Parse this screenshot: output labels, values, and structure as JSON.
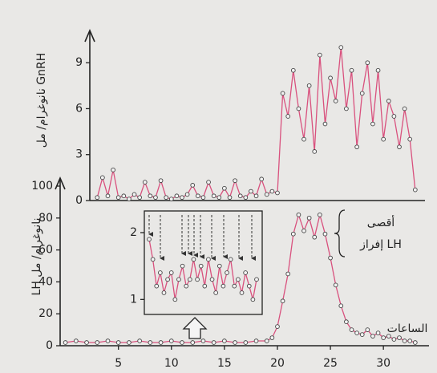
{
  "chart_data": [
    {
      "type": "line",
      "y_label": "نانوغرام/ مل GnRH",
      "color": "#d9517e",
      "marker_color": "#444",
      "x": [
        3,
        3.5,
        4,
        4.5,
        5,
        5.5,
        6,
        6.5,
        7,
        7.5,
        8,
        8.5,
        9,
        9.5,
        10,
        10.5,
        11,
        11.5,
        12,
        12.5,
        13,
        13.5,
        14,
        14.5,
        15,
        15.5,
        16,
        16.5,
        17,
        17.5,
        18,
        18.5,
        19,
        19.5,
        20,
        20.5,
        21,
        21.5,
        22,
        22.5,
        23,
        23.5,
        24,
        24.5,
        25,
        25.5,
        26,
        26.5,
        27,
        27.5,
        28,
        28.5,
        29,
        29.5,
        30,
        30.5,
        31,
        31.5,
        32,
        32.5,
        33
      ],
      "values": [
        0.2,
        1.5,
        0.3,
        2.0,
        0.2,
        0.3,
        0.1,
        0.4,
        0.2,
        1.2,
        0.3,
        0.2,
        1.3,
        0.2,
        0.1,
        0.3,
        0.2,
        0.4,
        1.0,
        0.3,
        0.2,
        1.2,
        0.3,
        0.2,
        0.8,
        0.2,
        1.3,
        0.3,
        0.2,
        0.6,
        0.3,
        1.4,
        0.4,
        0.6,
        0.5,
        7.0,
        5.5,
        8.5,
        6.0,
        4.0,
        7.5,
        3.2,
        9.5,
        5.0,
        8.0,
        6.5,
        10.0,
        6.0,
        8.5,
        3.5,
        7.0,
        9.0,
        5.0,
        8.5,
        4.0,
        6.5,
        5.5,
        3.5,
        6.0,
        4.0,
        0.7
      ],
      "xlim": [
        -0.5,
        34.3
      ],
      "ylim": [
        0,
        11
      ],
      "yticks": [
        0,
        3,
        6,
        9
      ]
    },
    {
      "type": "line",
      "y_label": "LH نانوغرام/ مل",
      "x_label": "الساعات",
      "color": "#d9517e",
      "marker_color": "#444",
      "x": [
        0,
        1,
        2,
        3,
        4,
        5,
        6,
        7,
        8,
        9,
        10,
        11,
        12,
        13,
        14,
        15,
        16,
        17,
        18,
        19,
        19.5,
        20,
        20.5,
        21,
        21.5,
        22,
        22.5,
        23,
        23.5,
        24,
        24.5,
        25,
        25.5,
        26,
        26.5,
        27,
        27.5,
        28,
        28.5,
        29,
        29.5,
        30,
        30.5,
        31,
        31.5,
        32,
        32.5,
        33
      ],
      "values": [
        2,
        3,
        2,
        2,
        3,
        2,
        2,
        3,
        2,
        2,
        3,
        2,
        2,
        3,
        2,
        3,
        2,
        2,
        3,
        3,
        5,
        12,
        28,
        45,
        70,
        82,
        72,
        80,
        68,
        82,
        70,
        55,
        38,
        25,
        15,
        10,
        8,
        7,
        10,
        6,
        8,
        5,
        6,
        4,
        5,
        3,
        3,
        2
      ],
      "xlim": [
        -0.5,
        34.3
      ],
      "xticks": [
        5,
        10,
        15,
        20,
        25,
        30
      ],
      "ylim": [
        0,
        100
      ],
      "yticks": [
        0,
        20,
        40,
        60,
        80,
        100
      ],
      "annotation": [
        "أقصى",
        "إفراز LH"
      ]
    },
    {
      "type": "line",
      "color": "#d9517e",
      "marker_color": "#444",
      "values": [
        1.9,
        1.6,
        1.2,
        1.4,
        1.1,
        1.3,
        1.4,
        1.0,
        1.3,
        1.5,
        1.2,
        1.3,
        1.6,
        1.3,
        1.5,
        1.2,
        1.6,
        1.3,
        1.1,
        1.5,
        1.2,
        1.4,
        1.6,
        1.2,
        1.3,
        1.1,
        1.4,
        1.2,
        1.0,
        1.3
      ],
      "ylim": [
        0.8,
        2.3
      ],
      "yticks": [
        1,
        2
      ]
    }
  ]
}
